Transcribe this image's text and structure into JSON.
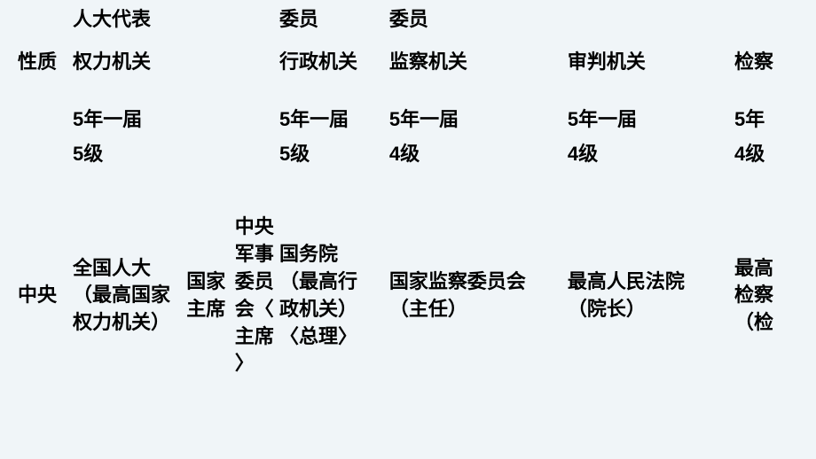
{
  "table": {
    "background_color": "#f0f5f8",
    "text_color": "#000000",
    "fontsize": 22,
    "font_weight": 600,
    "rows": {
      "row0": {
        "col1": "人大代表",
        "col4": "委员",
        "col5": "委员"
      },
      "row1": {
        "col0": "性质",
        "col1": "权力机关",
        "col4": "行政机关",
        "col5": "监察机关",
        "col6": "审判机关",
        "col7": "检察"
      },
      "row2": {
        "col1": "5年一届",
        "col4": "5年一届",
        "col5": "5年一届",
        "col6": "5年一届",
        "col7": "5年"
      },
      "row3": {
        "col1": "5级",
        "col4": "5级",
        "col5": "4级",
        "col6": "4级",
        "col7": "4级"
      },
      "row4": {
        "col0": "中央",
        "col1": "全国人大\n（最高国家\n权力机关）",
        "col2": "国家\n主席",
        "col3": "中央\n军事\n委员\n会〈\n主席\n〉",
        "col4": "国务院\n（最高行\n政机关）\n〈总理〉",
        "col5": "国家监察委员会\n（主任）",
        "col6": "最高人民法院\n（院长）",
        "col7": "最高\n检察\n（检"
      }
    }
  }
}
